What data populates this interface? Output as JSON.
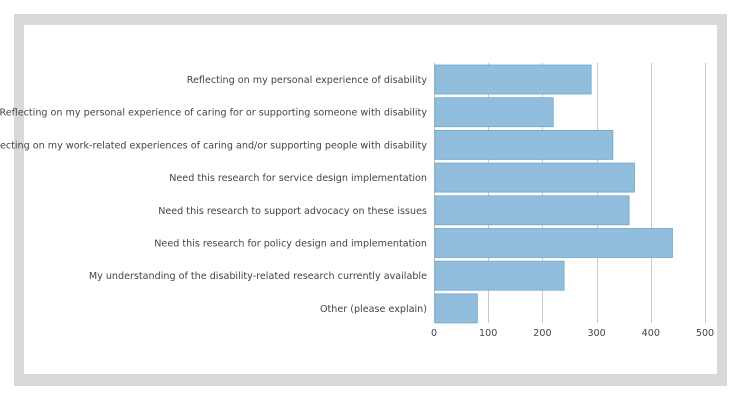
{
  "colors": {
    "bar_fill": "#92bedd",
    "bar_stroke": "#6fa6cd",
    "grid": "#c8c8c8",
    "axis": "#bdbdbd",
    "text": "#444444",
    "frame": "#d9d9d9"
  },
  "chart_data": {
    "type": "bar",
    "orientation": "horizontal",
    "title": "",
    "xlabel": "",
    "ylabel": "",
    "xlim": [
      0,
      500
    ],
    "xticks": [
      0,
      100,
      200,
      300,
      400,
      500
    ],
    "grid": true,
    "categories": [
      "Reflecting on my personal experience of disability",
      "Reflecting on my personal experience of caring for or supporting someone with disability",
      "Reflecting on my work-related experiences of caring and/or supporting people with disability",
      "Need this research for service design implementation",
      "Need this research to support advocacy on these issues",
      "Need this research for policy design and implementation",
      "My understanding of the disability-related research currently available",
      "Other (please explain)"
    ],
    "values": [
      290,
      220,
      330,
      370,
      360,
      440,
      240,
      80
    ]
  }
}
